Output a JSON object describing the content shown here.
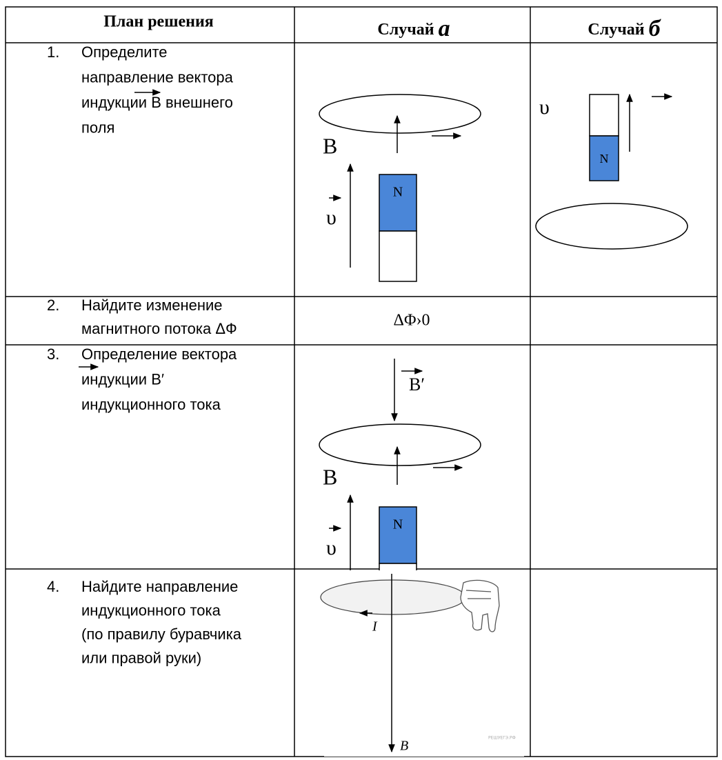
{
  "header": {
    "plan": "План решения",
    "case_a": {
      "word": "Случай",
      "letter": "а"
    },
    "case_b": {
      "word": "Случай",
      "letter": "б"
    }
  },
  "rows": [
    {
      "number": "1.",
      "lines": [
        "Определите",
        "направление вектора",
        "индукции B внешнего",
        "поля"
      ],
      "case_a": {
        "field_label": "B",
        "velocity_label": "υ",
        "pole": "N"
      },
      "case_b": {
        "velocity_label": "υ",
        "pole": "N"
      }
    },
    {
      "number": "2.",
      "lines": [
        "Найдите изменение",
        "магнитного потока ΔФ"
      ],
      "case_a": {
        "text": "ΔΦ›0"
      }
    },
    {
      "number": "3.",
      "lines": [
        "Определение вектора",
        "индукции B′",
        "индукционного тока"
      ],
      "case_a": {
        "induced_label": "B′",
        "field_label": "B",
        "velocity_label": "υ",
        "pole": "N"
      }
    },
    {
      "number": "4.",
      "lines": [
        "Найдите направление",
        "индукционного тока",
        "(по правилу буравчика",
        "или правой руки)"
      ],
      "case_a": {
        "current_label": "I",
        "field_label": "B",
        "watermark": "РЕШУЕГЭ.РФ"
      }
    }
  ]
}
